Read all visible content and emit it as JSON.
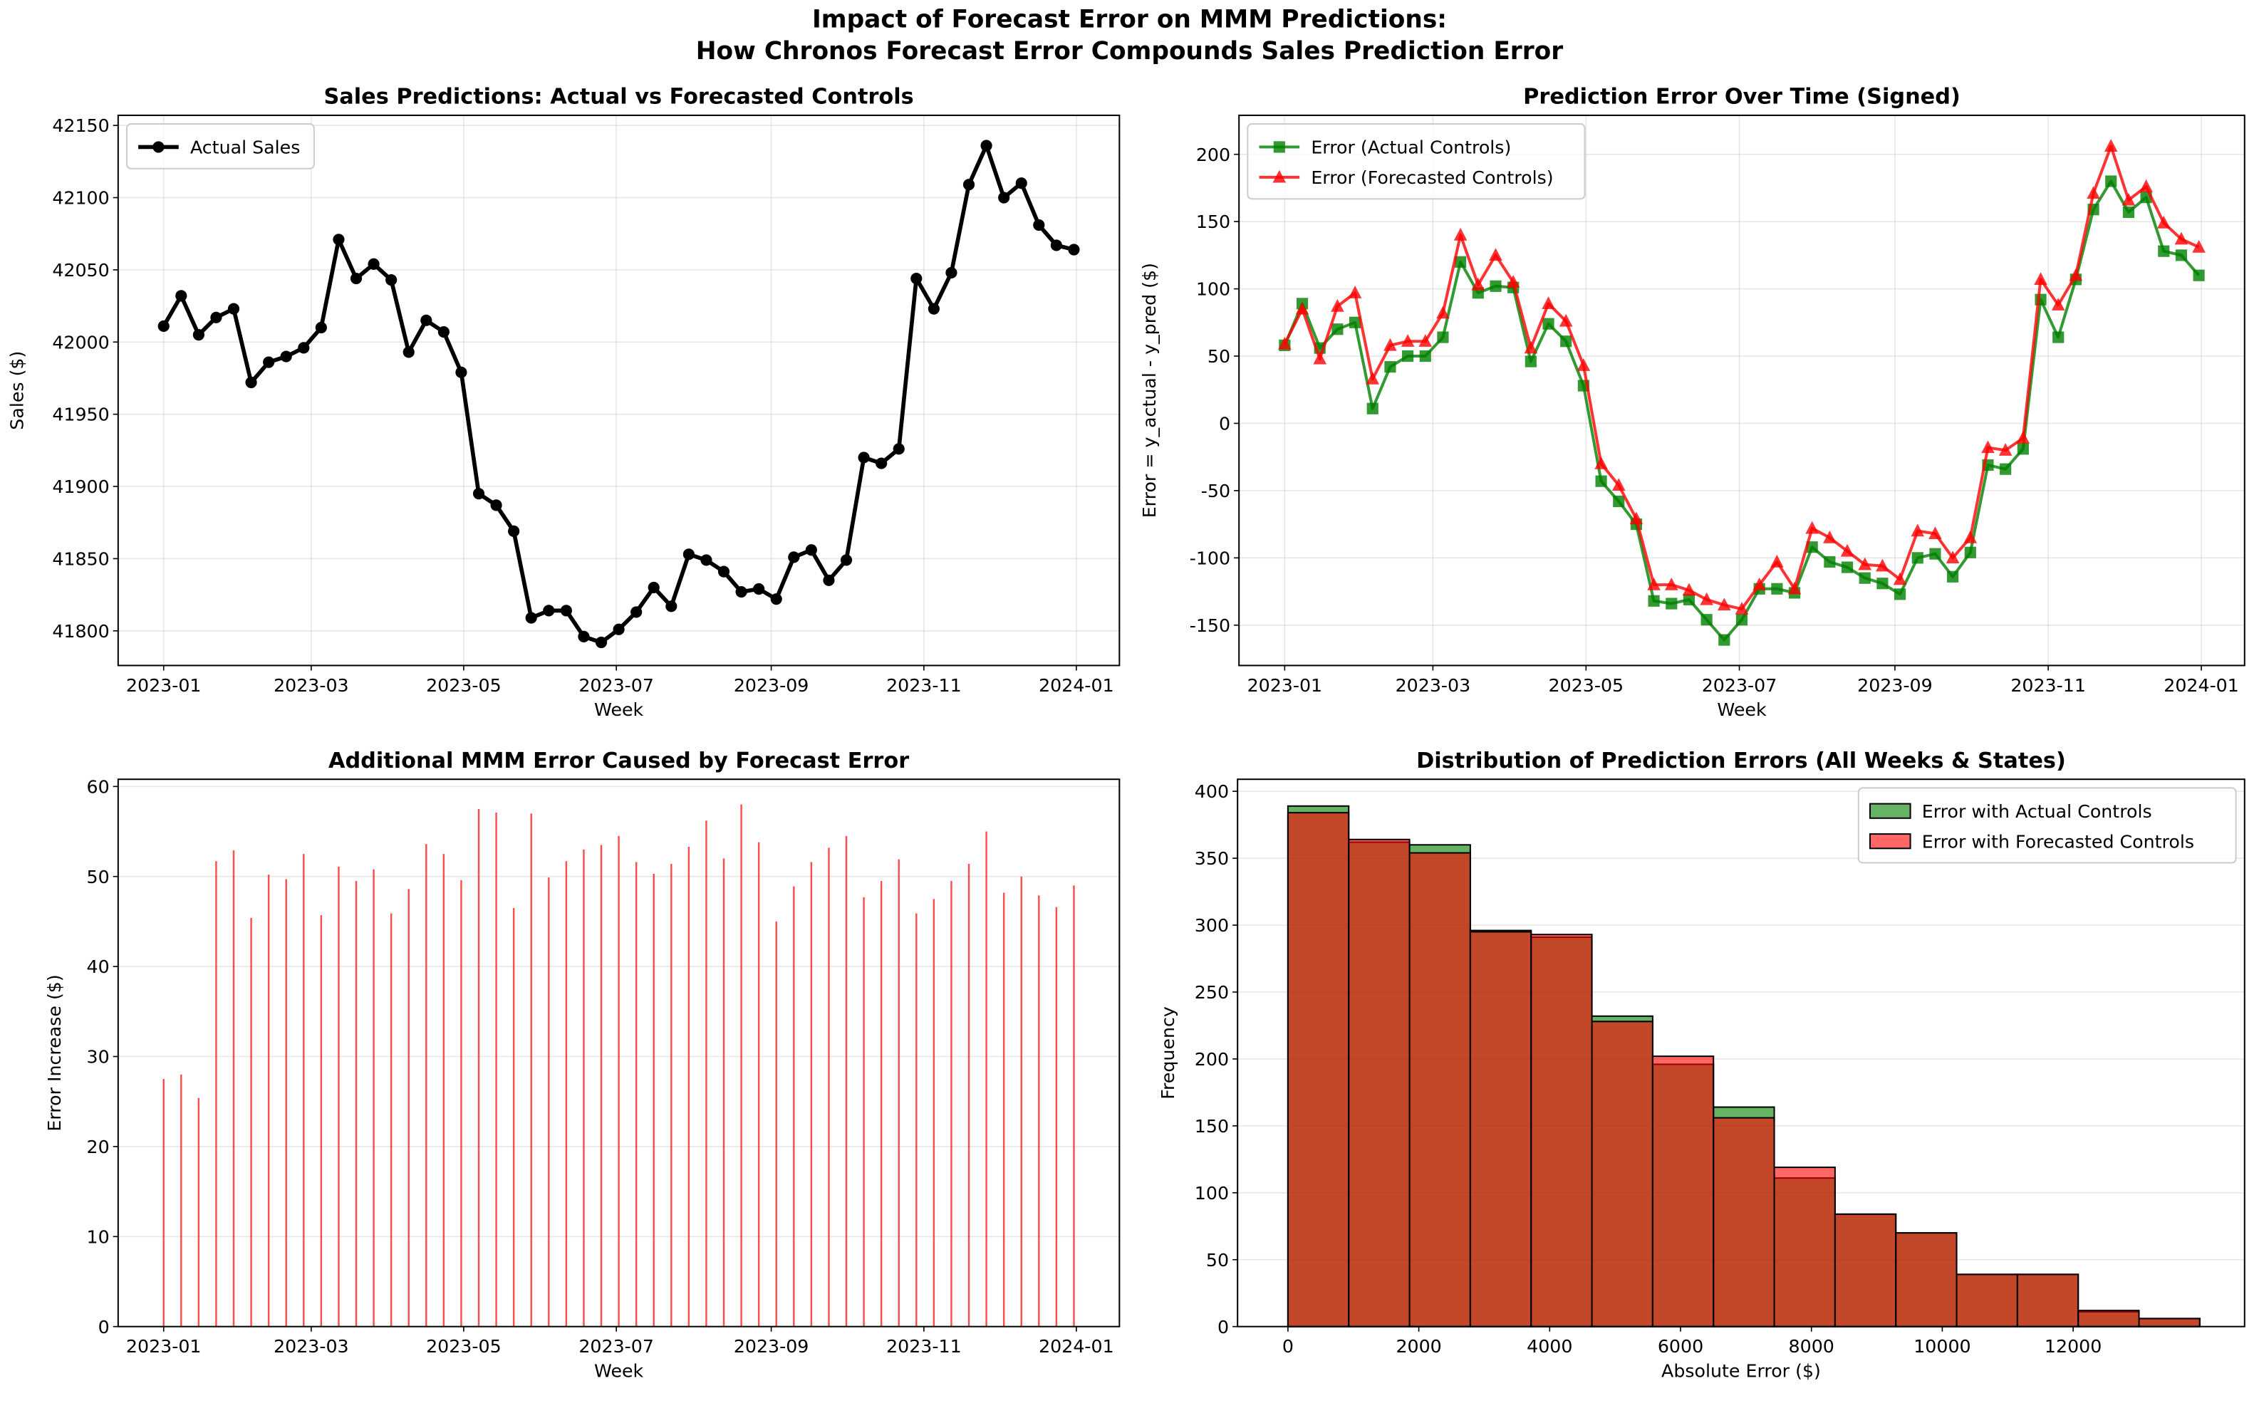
{
  "title": [
    "Impact of Forecast Error on MMM Predictions:",
    "How Chronos Forecast Error Compounds Sales Prediction Error"
  ],
  "chart_data": [
    {
      "type": "line",
      "title": "Sales Predictions: Actual vs Forecasted Controls",
      "xlabel": "Week",
      "ylabel": "Sales ($)",
      "x": [
        0,
        1,
        2,
        3,
        4,
        5,
        6,
        7,
        8,
        9,
        10,
        11,
        12,
        13,
        14,
        15,
        16,
        17,
        18,
        19,
        20,
        21,
        22,
        23,
        24,
        25,
        26,
        27,
        28,
        29,
        30,
        31,
        32,
        33,
        34,
        35,
        36,
        37,
        38,
        39,
        40,
        41,
        42,
        43,
        44,
        45,
        46,
        47,
        48,
        49,
        50,
        51,
        52
      ],
      "series": [
        {
          "name": "Actual Sales",
          "color": "#000000",
          "marker": "o",
          "alpha": 1,
          "values": [
            42011,
            42032,
            42005,
            42017,
            42023,
            41972,
            41986,
            41990,
            41996,
            42010,
            42071,
            42044,
            42054,
            42043,
            41993,
            42015,
            42007,
            41979,
            41895,
            41887,
            41869,
            41809,
            41814,
            41814,
            41796,
            41792,
            41801,
            41813,
            41830,
            41817,
            41853,
            41849,
            41841,
            41827,
            41829,
            41822,
            41851,
            41856,
            41835,
            41849,
            41920,
            41916,
            41926,
            42044,
            42023,
            42048,
            42109,
            42136,
            42100,
            42110,
            42081,
            42067,
            42064
          ]
        }
      ],
      "xlim": [
        -2.6,
        54.6
      ],
      "ylim": [
        41776,
        42157
      ],
      "xticks": [
        {
          "value": 0,
          "label": "2023-01"
        },
        {
          "value": 8.43,
          "label": "2023-03"
        },
        {
          "value": 17.14,
          "label": "2023-05"
        },
        {
          "value": 25.86,
          "label": "2023-07"
        },
        {
          "value": 34.71,
          "label": "2023-09"
        },
        {
          "value": 43.43,
          "label": "2023-11"
        },
        {
          "value": 52.14,
          "label": "2024-01"
        }
      ],
      "yticks": [
        41800,
        41850,
        41900,
        41950,
        42000,
        42050,
        42100,
        42150
      ],
      "grid": "both",
      "legend": "upper left"
    },
    {
      "type": "line",
      "title": "Prediction Error Over Time (Signed)",
      "xlabel": "Week",
      "ylabel": "Error = y_actual - y_pred ($)",
      "x": [
        0,
        1,
        2,
        3,
        4,
        5,
        6,
        7,
        8,
        9,
        10,
        11,
        12,
        13,
        14,
        15,
        16,
        17,
        18,
        19,
        20,
        21,
        22,
        23,
        24,
        25,
        26,
        27,
        28,
        29,
        30,
        31,
        32,
        33,
        34,
        35,
        36,
        37,
        38,
        39,
        40,
        41,
        42,
        43,
        44,
        45,
        46,
        47,
        48,
        49,
        50,
        51,
        52
      ],
      "series": [
        {
          "name": "Error (Actual Controls)",
          "color": "#008000",
          "marker": "s",
          "alpha": 0.8,
          "values": [
            58,
            89,
            56,
            70,
            75,
            11,
            42,
            50,
            50,
            64,
            120,
            97,
            102,
            101,
            46,
            74,
            61,
            28,
            -43,
            -58,
            -75,
            -132,
            -134,
            -131,
            -146,
            -161,
            -146,
            -123,
            -123,
            -126,
            -92,
            -103,
            -107,
            -115,
            -119,
            -127,
            -100,
            -97,
            -114,
            -96,
            -31,
            -34,
            -19,
            92,
            64,
            107,
            159,
            180,
            157,
            168,
            128,
            125,
            110
          ]
        },
        {
          "name": "Error (Forecasted Controls)",
          "color": "#ff0000",
          "marker": "^",
          "alpha": 0.8,
          "values": [
            59,
            85,
            48,
            87,
            97,
            33,
            58,
            61,
            61,
            82,
            140,
            103,
            125,
            105,
            56,
            89,
            76,
            43,
            -30,
            -46,
            -71,
            -120,
            -120,
            -124,
            -131,
            -135,
            -138,
            -120,
            -103,
            -123,
            -78,
            -85,
            -95,
            -105,
            -106,
            -116,
            -80,
            -82,
            -100,
            -85,
            -18,
            -20,
            -11,
            107,
            88,
            110,
            171,
            206,
            166,
            176,
            149,
            137,
            131
          ]
        }
      ],
      "xlim": [
        -2.6,
        54.6
      ],
      "ylim": [
        -180,
        229
      ],
      "xticks": [
        {
          "value": 0,
          "label": "2023-01"
        },
        {
          "value": 8.43,
          "label": "2023-03"
        },
        {
          "value": 17.14,
          "label": "2023-05"
        },
        {
          "value": 25.86,
          "label": "2023-07"
        },
        {
          "value": 34.71,
          "label": "2023-09"
        },
        {
          "value": 43.43,
          "label": "2023-11"
        },
        {
          "value": 52.14,
          "label": "2024-01"
        }
      ],
      "yticks": [
        -150,
        -100,
        -50,
        0,
        50,
        100,
        150,
        200
      ],
      "grid": "both",
      "legend": "upper left"
    },
    {
      "type": "bar",
      "title": "Additional MMM Error Caused by Forecast Error",
      "xlabel": "Week",
      "ylabel": "Error Increase ($)",
      "x": [
        0,
        1,
        2,
        3,
        4,
        5,
        6,
        7,
        8,
        9,
        10,
        11,
        12,
        13,
        14,
        15,
        16,
        17,
        18,
        19,
        20,
        21,
        22,
        23,
        24,
        25,
        26,
        27,
        28,
        29,
        30,
        31,
        32,
        33,
        34,
        35,
        36,
        37,
        38,
        39,
        40,
        41,
        42,
        43,
        44,
        45,
        46,
        47,
        48,
        49,
        50,
        51,
        52
      ],
      "values": [
        27.5,
        28,
        25.4,
        51.7,
        52.9,
        45.4,
        50.2,
        49.7,
        52.5,
        45.7,
        51.1,
        49.5,
        50.8,
        45.9,
        48.6,
        53.6,
        52.5,
        49.6,
        57.5,
        57.1,
        46.5,
        57.0,
        49.9,
        51.7,
        53.0,
        53.5,
        54.5,
        51.6,
        50.3,
        51.4,
        53.3,
        56.2,
        52.0,
        58.0,
        53.8,
        45.0,
        48.9,
        51.6,
        53.2,
        54.5,
        47.7,
        49.5,
        51.9,
        45.9,
        47.5,
        49.5,
        51.4,
        55.0,
        48.2,
        50.0,
        47.9,
        46.6,
        49.0
      ],
      "color": "#ff0000",
      "alpha": 0.7,
      "xlim": [
        -2.6,
        54.6
      ],
      "ylim": [
        0,
        60.8
      ],
      "xticks": [
        {
          "value": 0,
          "label": "2023-01"
        },
        {
          "value": 8.43,
          "label": "2023-03"
        },
        {
          "value": 17.14,
          "label": "2023-05"
        },
        {
          "value": 25.86,
          "label": "2023-07"
        },
        {
          "value": 34.71,
          "label": "2023-09"
        },
        {
          "value": 43.43,
          "label": "2023-11"
        },
        {
          "value": 52.14,
          "label": "2024-01"
        }
      ],
      "yticks": [
        0,
        10,
        20,
        30,
        40,
        50,
        60
      ],
      "grid": "y"
    },
    {
      "type": "histogram",
      "title": "Distribution of Prediction Errors (All Weeks & States)",
      "xlabel": "Absolute Error ($)",
      "ylabel": "Frequency",
      "bins": [
        0,
        929,
        1858,
        2787,
        3716,
        4645,
        5574,
        6503,
        7432,
        8361,
        9290,
        10219,
        11148,
        12077,
        13006,
        13935
      ],
      "series": [
        {
          "name": "Error with Actual Controls",
          "color": "#008000",
          "alpha": 0.6,
          "values": [
            389,
            362,
            360,
            296,
            291,
            232,
            196,
            164,
            111,
            84,
            70,
            39,
            39,
            11,
            6
          ]
        },
        {
          "name": "Error with Forecasted Controls",
          "color": "#ff0000",
          "alpha": 0.6,
          "values": [
            384,
            364,
            354,
            295,
            293,
            228,
            202,
            156,
            119,
            84,
            70,
            39,
            39,
            12,
            6
          ]
        }
      ],
      "xlim": [
        -770,
        14620
      ],
      "ylim": [
        0,
        409
      ],
      "xticks": [
        0,
        2000,
        4000,
        6000,
        8000,
        10000,
        12000
      ],
      "yticks": [
        0,
        50,
        100,
        150,
        200,
        250,
        300,
        350,
        400
      ],
      "grid": "y",
      "legend": "upper right"
    }
  ]
}
